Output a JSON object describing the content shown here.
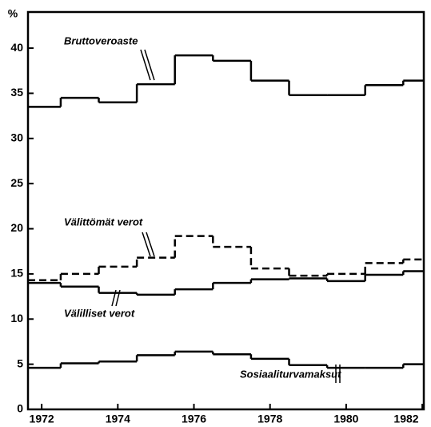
{
  "chart_data": {
    "type": "step",
    "y_label": "%",
    "x": [
      1972,
      1973,
      1974,
      1975,
      1976,
      1977,
      1978,
      1979,
      1980,
      1981,
      1982
    ],
    "series": [
      {
        "name": "Bruttoveroaste",
        "color": "#000000",
        "dash": false,
        "values": [
          33.5,
          34.5,
          34,
          36,
          39.2,
          38.6,
          36.4,
          34.8,
          34.8,
          35.9,
          36.4
        ]
      },
      {
        "name": "Välittömät verot",
        "color": "#000000",
        "dash": true,
        "values": [
          14.3,
          15.0,
          15.8,
          16.8,
          19.2,
          18.0,
          15.6,
          14.8,
          15.0,
          16.2,
          16.6
        ]
      },
      {
        "name": "Välilliset verot",
        "color": "#000000",
        "dash": false,
        "values": [
          14.0,
          13.6,
          12.9,
          12.7,
          13.3,
          14.0,
          14.4,
          14.5,
          14.2,
          14.9,
          15.3
        ]
      },
      {
        "name": "Sosiaaliturvamaksut",
        "color": "#000000",
        "dash": false,
        "values": [
          4.6,
          5.1,
          5.3,
          6.0,
          6.4,
          6.1,
          5.6,
          4.9,
          4.6,
          4.6,
          5.0
        ]
      }
    ],
    "xlim": [
      1971.64,
      1982.04
    ],
    "xticks": [
      1972,
      1974,
      1976,
      1978,
      1980,
      1982
    ],
    "ylim": [
      0,
      44
    ],
    "yticks": [
      0,
      5,
      10,
      15,
      20,
      25,
      30,
      35,
      40
    ]
  }
}
